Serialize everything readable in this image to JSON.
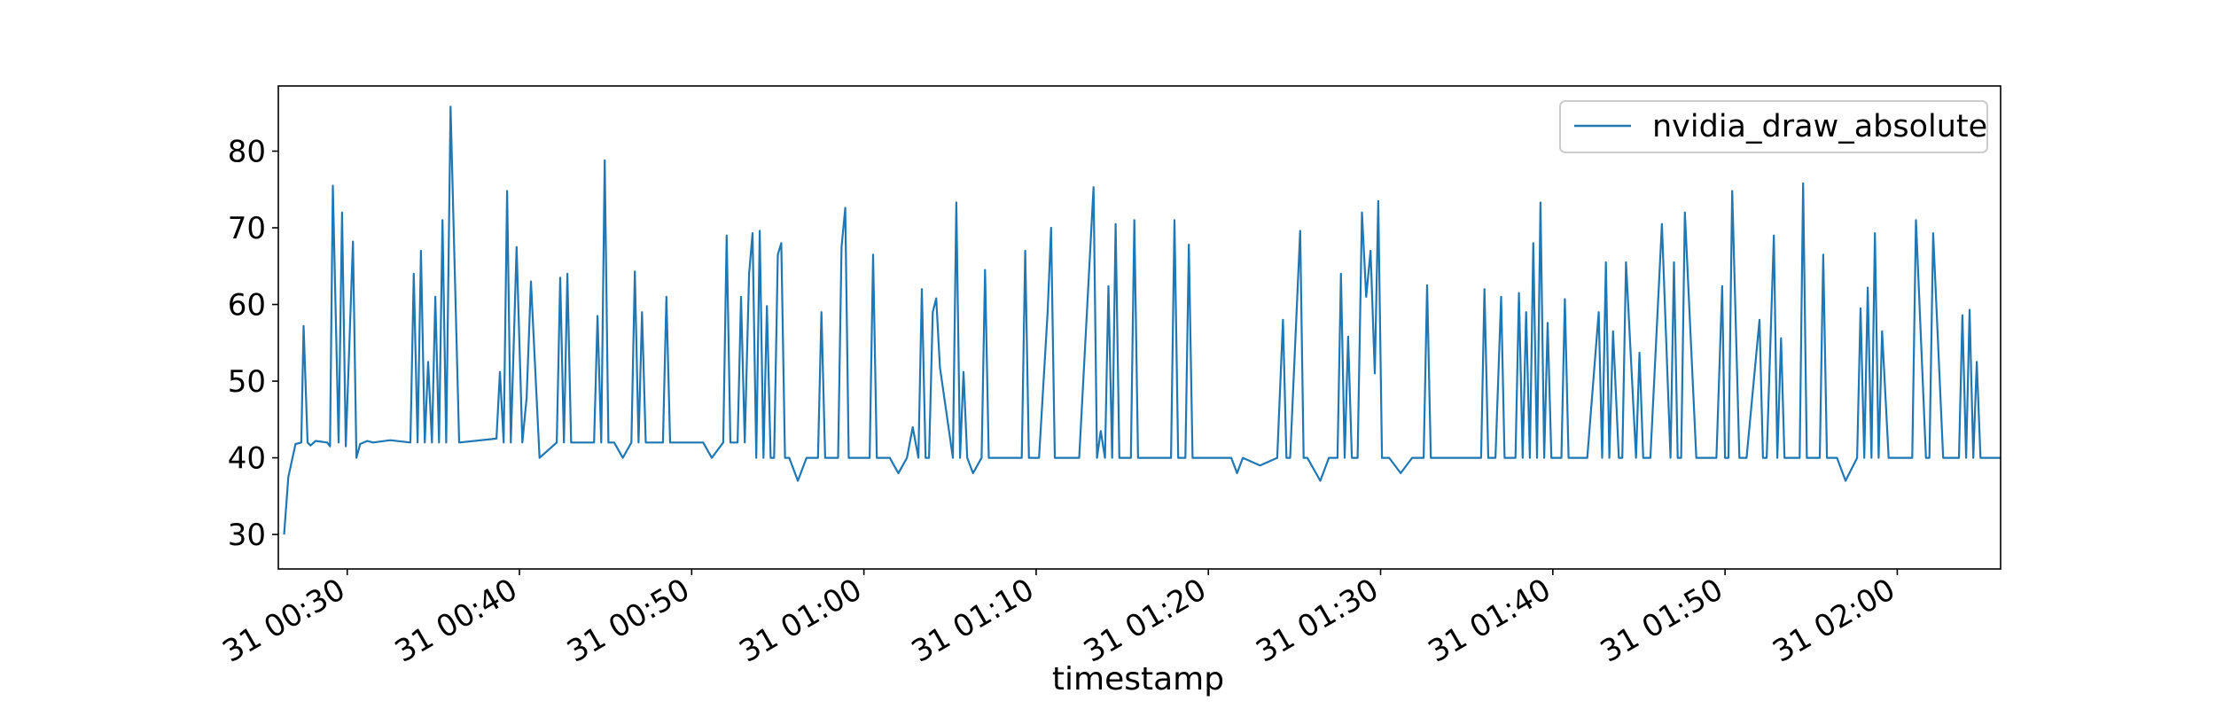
{
  "chart_data": {
    "type": "line",
    "title": "",
    "xlabel": "timestamp",
    "ylabel": "",
    "x_axis": {
      "type": "time",
      "range": [
        "31 00:26",
        "31 02:06"
      ],
      "ticks": [
        "31 00:30",
        "31 00:40",
        "31 00:50",
        "31 01:00",
        "31 01:10",
        "31 01:20",
        "31 01:30",
        "31 01:40",
        "31 01:50",
        "31 02:00"
      ]
    },
    "y_axis": {
      "range": [
        25.5,
        88.5
      ],
      "ticks": [
        30,
        40,
        50,
        60,
        70,
        80
      ]
    },
    "grid": false,
    "legend": {
      "position": "top-right",
      "entries": [
        "nvidia_draw_absolute"
      ]
    },
    "series": [
      {
        "name": "nvidia_draw_absolute",
        "color": "#1f77b4",
        "x": [
          "31 00:26:20",
          "31 00:26:35",
          "31 00:27:00",
          "31 00:27:20",
          "31 00:27:28",
          "31 00:27:42",
          "31 00:27:52",
          "31 00:28:10",
          "31 00:28:50",
          "31 00:29:00",
          "31 00:29:10",
          "31 00:29:30",
          "31 00:29:42",
          "31 00:29:55",
          "31 00:30:20",
          "31 00:30:32",
          "31 00:30:45",
          "31 00:31:10",
          "31 00:31:30",
          "31 00:32:30",
          "31 00:33:40",
          "31 00:33:52",
          "31 00:34:05",
          "31 00:34:17",
          "31 00:34:30",
          "31 00:34:42",
          "31 00:34:55",
          "31 00:35:07",
          "31 00:35:20",
          "31 00:35:32",
          "31 00:35:45",
          "31 00:36:00",
          "31 00:36:30",
          "31 00:38:40",
          "31 00:38:52",
          "31 00:39:05",
          "31 00:39:17",
          "31 00:39:30",
          "31 00:39:50",
          "31 00:40:10",
          "31 00:40:25",
          "31 00:40:40",
          "31 00:41:10",
          "31 00:42:10",
          "31 00:42:22",
          "31 00:42:35",
          "31 00:42:47",
          "31 00:43:00",
          "31 00:44:20",
          "31 00:44:32",
          "31 00:44:45",
          "31 00:44:57",
          "31 00:45:10",
          "31 00:45:30",
          "31 00:46:00",
          "31 00:46:30",
          "31 00:46:42",
          "31 00:46:55",
          "31 00:47:07",
          "31 00:47:20",
          "31 00:48:20",
          "31 00:48:32",
          "31 00:48:45",
          "31 00:49:30",
          "31 00:50:00",
          "31 00:50:40",
          "31 00:51:10",
          "31 00:51:50",
          "31 00:52:02",
          "31 00:52:15",
          "31 00:52:40",
          "31 00:52:52",
          "31 00:53:05",
          "31 00:53:20",
          "31 00:53:32",
          "31 00:53:45",
          "31 00:53:57",
          "31 00:54:10",
          "31 00:54:22",
          "31 00:54:35",
          "31 00:54:47",
          "31 00:55:00",
          "31 00:55:12",
          "31 00:55:25",
          "31 00:55:40",
          "31 00:56:10",
          "31 00:56:40",
          "31 00:57:20",
          "31 00:57:32",
          "31 00:57:45",
          "31 00:58:30",
          "31 00:58:42",
          "31 00:58:55",
          "31 00:59:07",
          "31 00:59:30",
          "31 01:00:20",
          "31 01:00:32",
          "31 01:00:45",
          "31 01:01:30",
          "31 01:02:00",
          "31 01:02:30",
          "31 01:02:50",
          "31 01:03:10",
          "31 01:03:22",
          "31 01:03:35",
          "31 01:03:47",
          "31 01:04:00",
          "31 01:04:12",
          "31 01:04:25",
          "31 01:05:10",
          "31 01:05:22",
          "31 01:05:35",
          "31 01:05:47",
          "31 01:06:00",
          "31 01:06:20",
          "31 01:06:50",
          "31 01:07:02",
          "31 01:07:15",
          "31 01:08:00",
          "31 01:08:30",
          "31 01:09:10",
          "31 01:09:22",
          "31 01:09:35",
          "31 01:10:10",
          "31 01:10:40",
          "31 01:10:52",
          "31 01:11:05",
          "31 01:11:17",
          "31 01:11:40",
          "31 01:12:30",
          "31 01:13:20",
          "31 01:13:32",
          "31 01:13:45",
          "31 01:14:00",
          "31 01:14:12",
          "31 01:14:25",
          "31 01:14:37",
          "31 01:14:50",
          "31 01:15:30",
          "31 01:15:42",
          "31 01:15:55",
          "31 01:16:30",
          "31 01:17:00",
          "31 01:17:50",
          "31 01:18:02",
          "31 01:18:15",
          "31 01:18:40",
          "31 01:18:52",
          "31 01:19:05",
          "31 01:19:40",
          "31 01:20:30",
          "31 01:21:20",
          "31 01:21:40",
          "31 01:22:00",
          "31 01:23:00",
          "31 01:24:00",
          "31 01:24:20",
          "31 01:24:32",
          "31 01:24:45",
          "31 01:25:20",
          "31 01:25:32",
          "31 01:25:45",
          "31 01:26:30",
          "31 01:27:00",
          "31 01:27:30",
          "31 01:27:42",
          "31 01:27:55",
          "31 01:28:07",
          "31 01:28:20",
          "31 01:28:40",
          "31 01:28:55",
          "31 01:29:10",
          "31 01:29:25",
          "31 01:29:40",
          "31 01:29:52",
          "31 01:30:05",
          "31 01:30:17",
          "31 01:30:30",
          "31 01:31:10",
          "31 01:31:50",
          "31 01:32:30",
          "31 01:32:42",
          "31 01:32:55",
          "31 01:34:00",
          "31 01:35:00",
          "31 01:35:50",
          "31 01:36:02",
          "31 01:36:15",
          "31 01:36:40",
          "31 01:37:00",
          "31 01:37:12",
          "31 01:37:25",
          "31 01:37:50",
          "31 01:38:02",
          "31 01:38:15",
          "31 01:38:27",
          "31 01:38:40",
          "31 01:38:52",
          "31 01:39:05",
          "31 01:39:17",
          "31 01:39:30",
          "31 01:39:42",
          "31 01:39:55",
          "31 01:40:30",
          "31 01:40:42",
          "31 01:40:55",
          "31 01:41:30",
          "31 01:42:00",
          "31 01:42:40",
          "31 01:42:52",
          "31 01:43:05",
          "31 01:43:17",
          "31 01:43:30",
          "31 01:43:50",
          "31 01:44:02",
          "31 01:44:15",
          "31 01:44:50",
          "31 01:45:02",
          "31 01:45:15",
          "31 01:45:27",
          "31 01:45:40",
          "31 01:46:20",
          "31 01:46:50",
          "31 01:47:02",
          "31 01:47:15",
          "31 01:47:27",
          "31 01:47:40",
          "31 01:48:20",
          "31 01:48:32",
          "31 01:48:45",
          "31 01:49:30",
          "31 01:49:50",
          "31 01:50:00",
          "31 01:50:12",
          "31 01:50:25",
          "31 01:50:50",
          "31 01:51:02",
          "31 01:51:15",
          "31 01:52:00",
          "31 01:52:12",
          "31 01:52:25",
          "31 01:52:50",
          "31 01:53:02",
          "31 01:53:15",
          "31 01:53:27",
          "31 01:53:40",
          "31 01:54:20",
          "31 01:54:32",
          "31 01:54:45",
          "31 01:55:30",
          "31 01:55:42",
          "31 01:55:55",
          "31 01:56:30",
          "31 01:57:00",
          "31 01:57:40",
          "31 01:57:52",
          "31 01:58:05",
          "31 01:58:17",
          "31 01:58:30",
          "31 01:58:42",
          "31 01:58:55",
          "31 01:59:07",
          "31 01:59:30",
          "31 02:00:00",
          "31 02:00:40",
          "31 02:00:52",
          "31 02:01:05",
          "31 02:01:40",
          "31 02:01:52",
          "31 02:02:05",
          "31 02:02:40",
          "31 02:03:10",
          "31 02:03:22",
          "31 02:03:35",
          "31 02:03:47",
          "31 02:04:00",
          "31 02:04:12",
          "31 02:04:25",
          "31 02:04:37",
          "31 02:04:50",
          "31 02:05:20",
          "31 02:06:00"
        ],
        "y": [
          30,
          37.5,
          41.8,
          42,
          57.2,
          42,
          41.6,
          42.2,
          42,
          41.5,
          75.5,
          42,
          72,
          41.5,
          68.2,
          40,
          41.8,
          42.2,
          42,
          42.3,
          42,
          64,
          42,
          67,
          42,
          52.5,
          42,
          61,
          42,
          71,
          42,
          85.8,
          42,
          42.5,
          51.2,
          42,
          74.8,
          42,
          67.5,
          42,
          47.8,
          63,
          40,
          42,
          63.5,
          42,
          64,
          42,
          42,
          58.5,
          42,
          78.8,
          42,
          42,
          40,
          42,
          64.3,
          42,
          59,
          42,
          42,
          61,
          42,
          42,
          42,
          42,
          40,
          42,
          69,
          42,
          42,
          61,
          42,
          64,
          69.3,
          40,
          69.6,
          40,
          59.8,
          40,
          40,
          66.5,
          68,
          40,
          40,
          37,
          40,
          40,
          59,
          40,
          40,
          67.5,
          72.6,
          40,
          40,
          40,
          66.5,
          40,
          40,
          38,
          40,
          44,
          40,
          62,
          40,
          40,
          59,
          60.8,
          51.8,
          40,
          73.3,
          40,
          51.2,
          40,
          38,
          40,
          64.5,
          40,
          40,
          40,
          40,
          67,
          40,
          40,
          59,
          70,
          40,
          40,
          40,
          40,
          75.3,
          40,
          43.5,
          40,
          62.4,
          40,
          70.5,
          40,
          40,
          71,
          40,
          40,
          40,
          40,
          71,
          40,
          40,
          67.8,
          40,
          40,
          40,
          40,
          38,
          40,
          39,
          40,
          58,
          40,
          40,
          69.6,
          40,
          40,
          37,
          40,
          40,
          64,
          40,
          55.8,
          40,
          40,
          72,
          61,
          67,
          51,
          73.5,
          40,
          40,
          40,
          38,
          40,
          40,
          62.5,
          40,
          40,
          40,
          40,
          62,
          40,
          40,
          61,
          40,
          40,
          40,
          61.5,
          40,
          59,
          40,
          68,
          40,
          73.3,
          40,
          57.6,
          40,
          40,
          60.7,
          40,
          40,
          40,
          59,
          40,
          65.5,
          40,
          56.5,
          40,
          40,
          65.5,
          40,
          53.7,
          40,
          40,
          40,
          70.5,
          40,
          65.5,
          40,
          40,
          72,
          40,
          40,
          40,
          40,
          62.4,
          40,
          40,
          74.8,
          40,
          40,
          40,
          58,
          40,
          40,
          69,
          40,
          55.6,
          40,
          40,
          40,
          75.8,
          40,
          40,
          66.5,
          40,
          40,
          37,
          40,
          59.5,
          40,
          62.2,
          40,
          69.3,
          40,
          56.5,
          40,
          40,
          40,
          40,
          71,
          40,
          40,
          69.3,
          40,
          40,
          40,
          40,
          58.6,
          40,
          59.3,
          40,
          52.5,
          40,
          40,
          40
        ]
      }
    ]
  }
}
